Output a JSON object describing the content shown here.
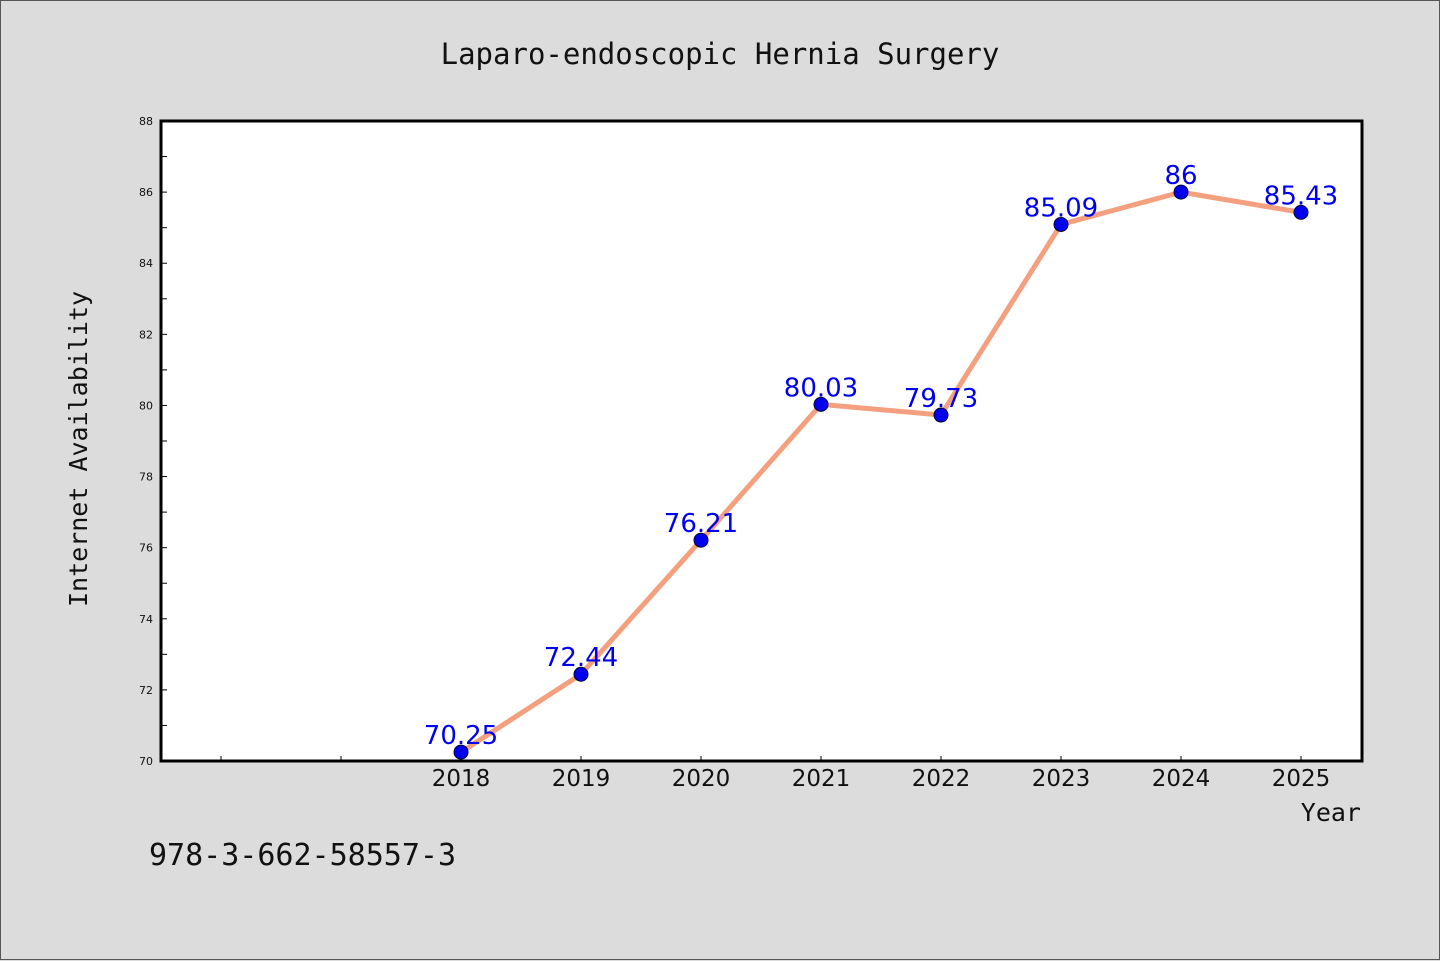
{
  "chart_data": {
    "type": "line",
    "title": "Laparo-endoscopic Hernia Surgery",
    "xlabel": "Year",
    "ylabel": "Internet Availability",
    "categories": [
      "2018",
      "2019",
      "2020",
      "2021",
      "2022",
      "2023",
      "2024",
      "2025"
    ],
    "series": [
      {
        "values": [
          70.25,
          72.44,
          76.21,
          80.03,
          79.73,
          85.09,
          86,
          85.43
        ],
        "labels": [
          "70.25",
          "72.44",
          "76.21",
          "80.03",
          "79.73",
          "85.09",
          "86",
          "85.43"
        ]
      }
    ],
    "ylim": [
      70,
      88
    ],
    "yticks": [
      "70",
      "72",
      "74",
      "76",
      "78",
      "80",
      "82",
      "84",
      "86",
      "88"
    ],
    "grid": false,
    "line_color": "#f4a07f",
    "marker_color": "#0000ee",
    "label_color": "#0000ee",
    "background_color": "#dcdcdc",
    "plot_background_color": "#ffffff"
  },
  "footer": {
    "isbn": "978-3-662-58557-3"
  }
}
